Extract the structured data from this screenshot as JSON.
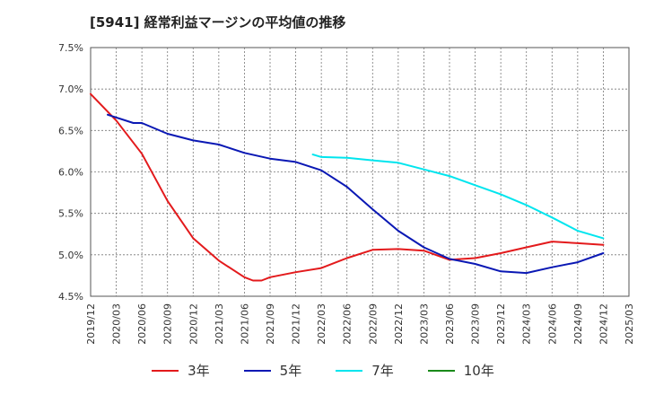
{
  "title": "[5941]  経常利益マージンの平均値の推移",
  "chart_data": {
    "type": "line",
    "x_ticks": [
      "2019/12",
      "2020/03",
      "2020/06",
      "2020/09",
      "2020/12",
      "2021/03",
      "2021/06",
      "2021/09",
      "2021/12",
      "2022/03",
      "2022/06",
      "2022/09",
      "2022/12",
      "2023/03",
      "2023/06",
      "2023/09",
      "2023/12",
      "2024/03",
      "2024/06",
      "2024/09",
      "2024/12",
      "2025/03"
    ],
    "y_ticks": [
      "4.5%",
      "5.0%",
      "5.5%",
      "6.0%",
      "6.5%",
      "7.0%",
      "7.5%"
    ],
    "ylim": [
      4.5,
      7.5
    ],
    "grid": true,
    "legend_position": "bottom",
    "series": [
      {
        "name": "3年",
        "color": "#e31a1c",
        "x": [
          "2019/12",
          "2020/03",
          "2020/06",
          "2020/09",
          "2020/12",
          "2021/03",
          "2021/06",
          "2021/07",
          "2021/08",
          "2021/09",
          "2021/12",
          "2022/03",
          "2022/06",
          "2022/09",
          "2022/12",
          "2023/03",
          "2023/06",
          "2023/09",
          "2023/12",
          "2024/03",
          "2024/06",
          "2024/09",
          "2024/12"
        ],
        "values": [
          6.94,
          6.62,
          6.22,
          5.65,
          5.2,
          4.93,
          4.73,
          4.69,
          4.69,
          4.73,
          4.79,
          4.84,
          4.96,
          5.06,
          5.07,
          5.05,
          4.94,
          4.96,
          5.02,
          5.09,
          5.16,
          5.14,
          5.12
        ]
      },
      {
        "name": "5年",
        "color": "#0a18b4",
        "x": [
          "2020/02",
          "2020/05",
          "2020/06",
          "2020/09",
          "2020/12",
          "2021/03",
          "2021/06",
          "2021/09",
          "2021/12",
          "2022/03",
          "2022/06",
          "2022/09",
          "2022/12",
          "2023/03",
          "2023/06",
          "2023/09",
          "2023/12",
          "2024/03",
          "2024/06",
          "2024/09",
          "2024/12"
        ],
        "values": [
          6.69,
          6.59,
          6.59,
          6.46,
          6.38,
          6.33,
          6.23,
          6.16,
          6.12,
          6.02,
          5.82,
          5.55,
          5.29,
          5.09,
          4.95,
          4.89,
          4.8,
          4.78,
          4.85,
          4.91,
          5.02
        ]
      },
      {
        "name": "7年",
        "color": "#00e5ee",
        "x": [
          "2022/02",
          "2022/03",
          "2022/06",
          "2022/09",
          "2022/12",
          "2023/03",
          "2023/06",
          "2023/09",
          "2023/12",
          "2024/03",
          "2024/06",
          "2024/09",
          "2024/12"
        ],
        "values": [
          6.21,
          6.18,
          6.17,
          6.14,
          6.11,
          6.03,
          5.95,
          5.84,
          5.73,
          5.6,
          5.45,
          5.29,
          5.2
        ]
      },
      {
        "name": "10年",
        "color": "#1a8a1a",
        "x": [],
        "values": []
      }
    ]
  }
}
